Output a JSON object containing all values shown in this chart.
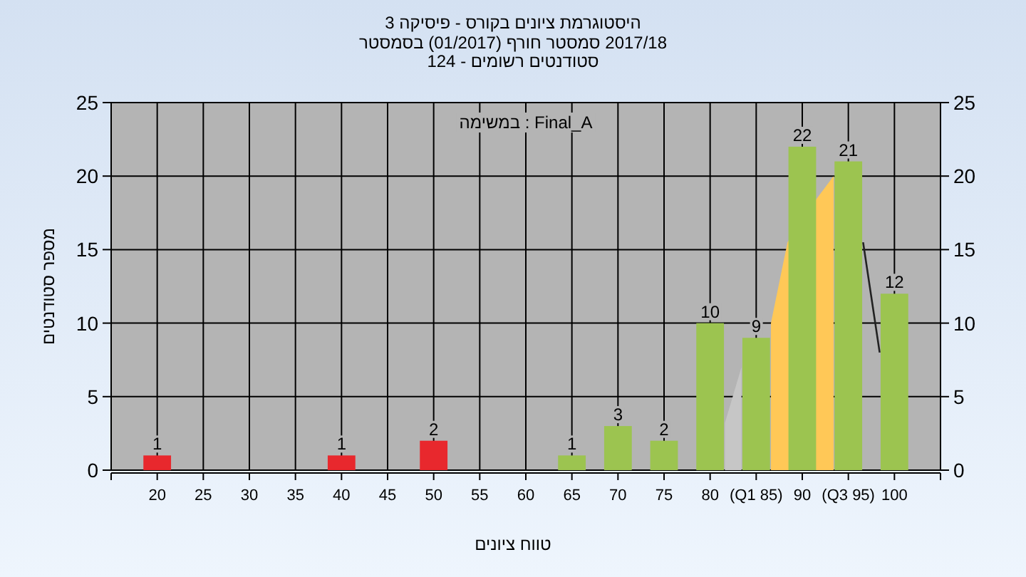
{
  "chart_data": {
    "type": "bar",
    "title": "היסטוגרמת ציונים בקורס - פיסיקה 3",
    "subtitle": [
      "2017/18 סמסטר חורף  (01/2017)  בסמסטר",
      "סטודנטים רשומים - 124"
    ],
    "xlabel": "טווח ציונים",
    "ylabel": "מספר סטודנטים",
    "annotations": [
      "Final_A : במשימה"
    ],
    "x": [
      20,
      25,
      30,
      35,
      40,
      45,
      50,
      55,
      60,
      65,
      70,
      75,
      80,
      85,
      90,
      95,
      100
    ],
    "xlim": [
      15,
      105
    ],
    "xticks": [
      20,
      25,
      30,
      35,
      40,
      45,
      50,
      55,
      60,
      65,
      70,
      75,
      80,
      {
        "value": 85,
        "label": "(Q1 85)"
      },
      90,
      {
        "value": 95,
        "label": "(Q3 95)"
      },
      100
    ],
    "series": [
      {
        "type": "area",
        "color": "#c6c6c6",
        "x": [
          81.6,
          83.4
        ],
        "values": [
          3.2,
          7
        ]
      },
      {
        "type": "area",
        "color": "#ffc857",
        "x": [
          86.6,
          88.4,
          91.6,
          93.4
        ],
        "values": [
          10,
          15.5,
          18.5,
          20
        ]
      },
      {
        "type": "line",
        "color": "#222222",
        "x": [
          96.6,
          98.4
        ],
        "values": [
          15.5,
          8
        ]
      },
      {
        "values": [
          1,
          0,
          0,
          0,
          1,
          0,
          2,
          0,
          0,
          1,
          3,
          2,
          10,
          9,
          22,
          21,
          12
        ],
        "colors": [
          "#e8282d",
          "#e8282d",
          "#e8282d",
          "#e8282d",
          "#e8282d",
          "#e8282d",
          "#e8282d",
          "#e8282d",
          "#9cc450",
          "#9cc450",
          "#9cc450",
          "#9cc450",
          "#9cc450",
          "#9cc450",
          "#9cc450",
          "#9cc450",
          "#9cc450"
        ],
        "value_labels": [
          "1",
          null,
          null,
          null,
          "1",
          null,
          "2",
          null,
          null,
          "1",
          "3",
          "2",
          "10",
          "9",
          "22",
          "21",
          "12"
        ]
      }
    ],
    "ylim": [
      0,
      25
    ],
    "yticks": [
      0,
      5,
      10,
      15,
      20,
      25
    ],
    "y2lim": [
      0,
      25
    ],
    "y2ticks": [
      0,
      5,
      10,
      15,
      20,
      25
    ],
    "grid": true
  }
}
